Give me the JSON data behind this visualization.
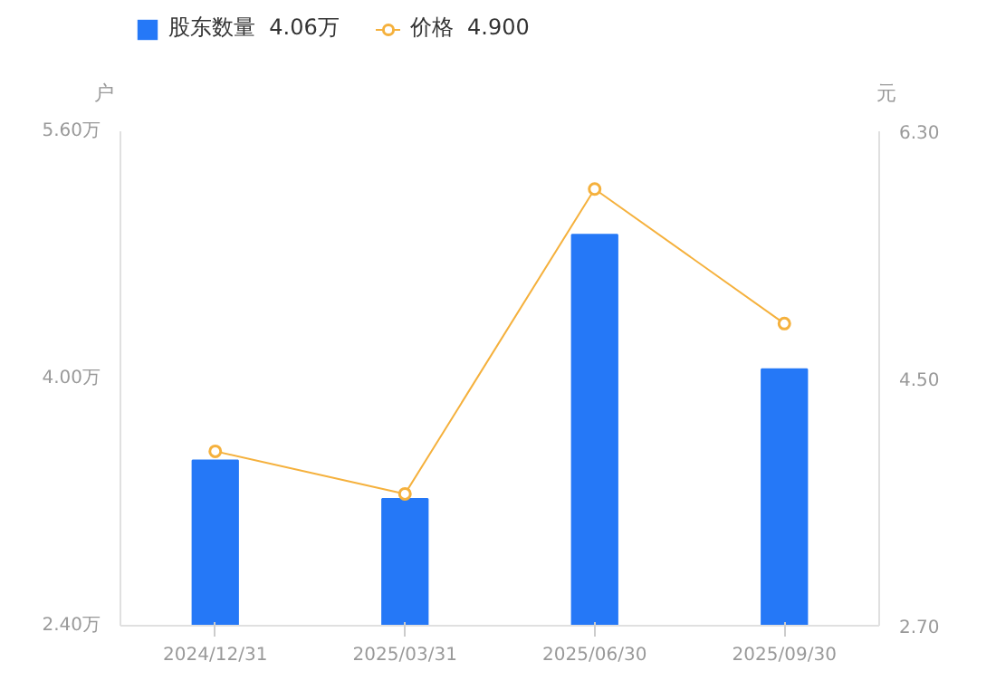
{
  "chart_data": {
    "type": "bar",
    "categories": [
      "2024/12/31",
      "2025/03/31",
      "2025/06/30",
      "2025/09/30"
    ],
    "series": [
      {
        "name": "股东数量  4.06万",
        "color": "#2578f7",
        "values": [
          3.47,
          3.22,
          4.93,
          4.06
        ]
      },
      {
        "name": "价格  4.900",
        "type": "line",
        "axis": "y2",
        "color": "#f5b13d",
        "marker": "circle",
        "values": [
          3.97,
          3.66,
          5.88,
          4.9
        ]
      }
    ],
    "ylabel": "户",
    "y2label": "元",
    "ylim": [
      2.4,
      5.6
    ],
    "yticks": [
      {
        "value": 2.4,
        "label": "2.40万"
      },
      {
        "value": 4.0,
        "label": "4.00万"
      },
      {
        "value": 5.6,
        "label": "5.60万"
      }
    ],
    "y2lim": [
      2.7,
      6.3
    ],
    "y2ticks": [
      {
        "value": 2.7,
        "label": "2.70"
      },
      {
        "value": 4.5,
        "label": "4.50"
      },
      {
        "value": 6.3,
        "label": "6.30"
      }
    ],
    "grid": false,
    "legend": "top left"
  }
}
